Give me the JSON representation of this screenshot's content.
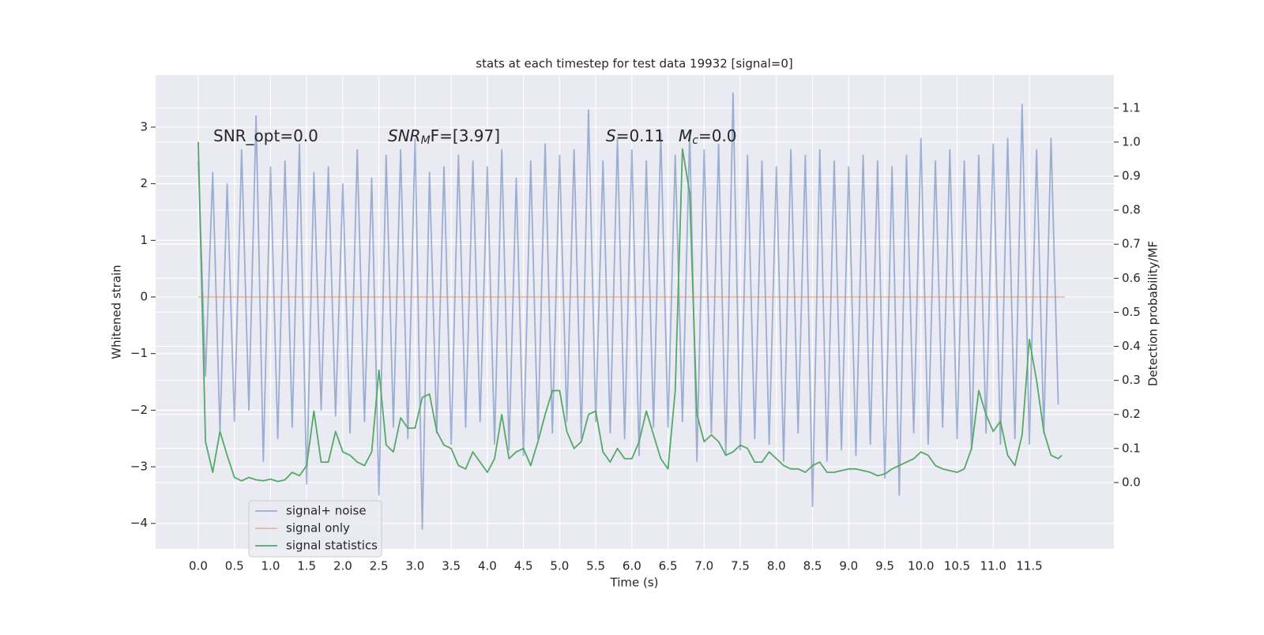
{
  "chart_data": {
    "type": "line",
    "title": "stats at each timestep for test data 19932 [signal=0]",
    "xlabel": "Time (s)",
    "ylabel": "Whitened strain",
    "y2label": "Detection probability/MF",
    "annotations": [
      {
        "text": "SNR_opt=0.0"
      },
      {
        "base": "SNR",
        "sub": "M",
        "rest": "F=[3.97]"
      },
      {
        "base": "S",
        "rest": "=0.11"
      },
      {
        "base": "M",
        "sub": "c",
        "rest": "=0.0"
      }
    ],
    "xlim": [
      -0.59,
      12.67
    ],
    "ylim": [
      -4.45,
      3.92
    ],
    "y2lim": [
      -0.195,
      1.197
    ],
    "xticks": [
      {
        "value": 0,
        "label": "0.0"
      },
      {
        "value": 0.5,
        "label": "0.5"
      },
      {
        "value": 1,
        "label": "1.0"
      },
      {
        "value": 1.5,
        "label": "1.5"
      },
      {
        "value": 2,
        "label": "2.0"
      },
      {
        "value": 2.5,
        "label": "2.5"
      },
      {
        "value": 3,
        "label": "3.0"
      },
      {
        "value": 3.5,
        "label": "3.5"
      },
      {
        "value": 4,
        "label": "4.0"
      },
      {
        "value": 4.5,
        "label": "4.5"
      },
      {
        "value": 5,
        "label": "5.0"
      },
      {
        "value": 5.5,
        "label": "5.5"
      },
      {
        "value": 6,
        "label": "6.0"
      },
      {
        "value": 6.5,
        "label": "6.5"
      },
      {
        "value": 7,
        "label": "7.0"
      },
      {
        "value": 7.5,
        "label": "7.5"
      },
      {
        "value": 8,
        "label": "8.0"
      },
      {
        "value": 8.5,
        "label": "8.5"
      },
      {
        "value": 9,
        "label": "9.0"
      },
      {
        "value": 9.5,
        "label": "9.5"
      },
      {
        "value": 10,
        "label": "10.0"
      },
      {
        "value": 10.5,
        "label": "10.5"
      },
      {
        "value": 11,
        "label": "11.0"
      },
      {
        "value": 11.5,
        "label": "11.5"
      }
    ],
    "yticks": [
      {
        "value": -4,
        "label": "−4"
      },
      {
        "value": -3,
        "label": "−3"
      },
      {
        "value": -2,
        "label": "−2"
      },
      {
        "value": -1,
        "label": "−1"
      },
      0,
      1,
      2,
      3
    ],
    "y2ticks": [
      {
        "value": 0,
        "label": "0.0"
      },
      {
        "value": 0.1,
        "label": "0.1"
      },
      {
        "value": 0.2,
        "label": "0.2"
      },
      {
        "value": 0.3,
        "label": "0.3"
      },
      {
        "value": 0.4,
        "label": "0.4"
      },
      {
        "value": 0.5,
        "label": "0.5"
      },
      {
        "value": 0.6,
        "label": "0.6"
      },
      {
        "value": 0.7,
        "label": "0.7"
      },
      {
        "value": 0.8,
        "label": "0.8"
      },
      {
        "value": 0.9,
        "label": "0.9"
      },
      {
        "value": 1,
        "label": "1.0"
      },
      {
        "value": 1.1,
        "label": "1.1"
      }
    ],
    "grid": true,
    "legend": "lower left",
    "series": [
      {
        "name": "signal+ noise",
        "color": "#4c72b0",
        "alpha": 0.5,
        "x": [
          0,
          0.1,
          0.2,
          0.3,
          0.4,
          0.5,
          0.6,
          0.7,
          0.8,
          0.9,
          1,
          1.1,
          1.2,
          1.3,
          1.4,
          1.5,
          1.6,
          1.7,
          1.8,
          1.9,
          2,
          2.1,
          2.2,
          2.3,
          2.4,
          2.5,
          2.6,
          2.7,
          2.8,
          2.9,
          3,
          3.1,
          3.2,
          3.3,
          3.4,
          3.5,
          3.6,
          3.7,
          3.8,
          3.9,
          4,
          4.1,
          4.2,
          4.3,
          4.4,
          4.5,
          4.6,
          4.7,
          4.8,
          4.9,
          5,
          5.1,
          5.2,
          5.3,
          5.4,
          5.5,
          5.6,
          5.7,
          5.8,
          5.9,
          6,
          6.1,
          6.2,
          6.3,
          6.4,
          6.5,
          6.6,
          6.7,
          6.8,
          6.9,
          7,
          7.1,
          7.2,
          7.3,
          7.4,
          7.5,
          7.6,
          7.7,
          7.8,
          7.9,
          8,
          8.1,
          8.2,
          8.3,
          8.4,
          8.5,
          8.6,
          8.7,
          8.8,
          8.9,
          9,
          9.1,
          9.2,
          9.3,
          9.4,
          9.5,
          9.6,
          9.7,
          9.8,
          9.9,
          10,
          10.1,
          10.2,
          10.3,
          10.4,
          10.5,
          10.6,
          10.7,
          10.8,
          10.9,
          11,
          11.1,
          11.2,
          11.3,
          11.4,
          11.5,
          11.6,
          11.7,
          11.8,
          11.9
        ],
        "values": [
          2.4,
          -1.4,
          2.2,
          -2.4,
          2.0,
          -2.2,
          2.6,
          -2.0,
          3.2,
          -2.9,
          2.3,
          -2.5,
          2.4,
          -2.3,
          2.7,
          -3.3,
          2.2,
          -2.0,
          2.3,
          -2.1,
          2.0,
          -2.4,
          2.6,
          -2.2,
          2.1,
          -3.5,
          2.5,
          -2.3,
          2.6,
          -2.5,
          2.8,
          -4.1,
          2.2,
          -2.4,
          2.3,
          -2.6,
          2.5,
          -2.3,
          2.4,
          -2.2,
          2.3,
          -2.6,
          2.6,
          -2.7,
          2.1,
          -2.8,
          2.4,
          -2.5,
          2.7,
          -2.4,
          2.5,
          -2.2,
          2.6,
          -2.5,
          3.3,
          -2.2,
          2.4,
          -2.4,
          2.8,
          -2.5,
          2.6,
          -2.8,
          2.4,
          -2.3,
          2.9,
          -2.3,
          2.5,
          -2.2,
          2.9,
          -2.9,
          2.6,
          -2.4,
          2.7,
          -2.8,
          3.6,
          -2.7,
          2.5,
          -2.5,
          2.4,
          -2.6,
          2.3,
          -2.9,
          2.6,
          -2.4,
          2.5,
          -3.7,
          2.6,
          -2.9,
          2.4,
          -2.7,
          2.3,
          -2.8,
          2.5,
          -2.6,
          2.4,
          -3.2,
          2.3,
          -3.5,
          2.5,
          -2.4,
          2.8,
          -2.6,
          2.4,
          -2.3,
          2.6,
          -2.5,
          2.4,
          -2.7,
          2.5,
          -2.4,
          2.7,
          -2.6,
          2.8,
          -2.5,
          3.4,
          -2.6,
          2.6,
          -2.4,
          2.8,
          -1.9
        ]
      },
      {
        "name": "signal only",
        "color": "#dd8452",
        "alpha": 0.5,
        "x": [
          0,
          11.99
        ],
        "values": [
          0,
          0
        ]
      },
      {
        "name": "signal statistics",
        "color": "#55a868",
        "axis": "y2",
        "x": [
          0,
          0.1,
          0.2,
          0.3,
          0.4,
          0.5,
          0.6,
          0.7,
          0.8,
          0.9,
          1,
          1.1,
          1.2,
          1.3,
          1.4,
          1.5,
          1.6,
          1.7,
          1.8,
          1.9,
          2,
          2.1,
          2.2,
          2.3,
          2.4,
          2.5,
          2.6,
          2.7,
          2.8,
          2.9,
          3,
          3.1,
          3.2,
          3.3,
          3.4,
          3.5,
          3.6,
          3.7,
          3.8,
          3.9,
          4,
          4.1,
          4.2,
          4.3,
          4.4,
          4.5,
          4.6,
          4.7,
          4.8,
          4.9,
          5,
          5.1,
          5.2,
          5.3,
          5.4,
          5.5,
          5.6,
          5.7,
          5.8,
          5.9,
          6,
          6.1,
          6.2,
          6.3,
          6.4,
          6.5,
          6.6,
          6.7,
          6.8,
          6.9,
          7,
          7.1,
          7.2,
          7.3,
          7.4,
          7.5,
          7.6,
          7.7,
          7.8,
          7.9,
          8,
          8.1,
          8.2,
          8.3,
          8.4,
          8.5,
          8.6,
          8.7,
          8.8,
          8.9,
          9,
          9.1,
          9.2,
          9.3,
          9.4,
          9.5,
          9.6,
          9.7,
          9.8,
          9.9,
          10,
          10.1,
          10.2,
          10.3,
          10.4,
          10.5,
          10.6,
          10.7,
          10.8,
          10.9,
          11,
          11.1,
          11.2,
          11.3,
          11.4,
          11.5,
          11.6,
          11.7,
          11.8,
          11.9,
          11.95
        ],
        "values": [
          1.0,
          0.12,
          0.03,
          0.15,
          0.08,
          0.015,
          0.005,
          0.015,
          0.008,
          0.005,
          0.01,
          0.003,
          0.008,
          0.03,
          0.02,
          0.05,
          0.21,
          0.06,
          0.06,
          0.15,
          0.09,
          0.08,
          0.06,
          0.05,
          0.09,
          0.33,
          0.11,
          0.09,
          0.19,
          0.16,
          0.16,
          0.25,
          0.26,
          0.15,
          0.11,
          0.1,
          0.05,
          0.04,
          0.09,
          0.06,
          0.03,
          0.07,
          0.2,
          0.07,
          0.09,
          0.1,
          0.05,
          0.12,
          0.2,
          0.27,
          0.27,
          0.15,
          0.1,
          0.12,
          0.2,
          0.21,
          0.09,
          0.06,
          0.1,
          0.07,
          0.07,
          0.12,
          0.21,
          0.14,
          0.07,
          0.04,
          0.27,
          0.98,
          0.85,
          0.2,
          0.12,
          0.14,
          0.12,
          0.08,
          0.09,
          0.11,
          0.1,
          0.06,
          0.06,
          0.09,
          0.07,
          0.05,
          0.04,
          0.04,
          0.03,
          0.05,
          0.06,
          0.03,
          0.03,
          0.035,
          0.04,
          0.04,
          0.035,
          0.03,
          0.02,
          0.025,
          0.04,
          0.05,
          0.06,
          0.07,
          0.09,
          0.08,
          0.05,
          0.04,
          0.035,
          0.03,
          0.04,
          0.1,
          0.27,
          0.2,
          0.15,
          0.18,
          0.08,
          0.05,
          0.14,
          0.42,
          0.3,
          0.15,
          0.08,
          0.07,
          0.08
        ]
      }
    ]
  }
}
